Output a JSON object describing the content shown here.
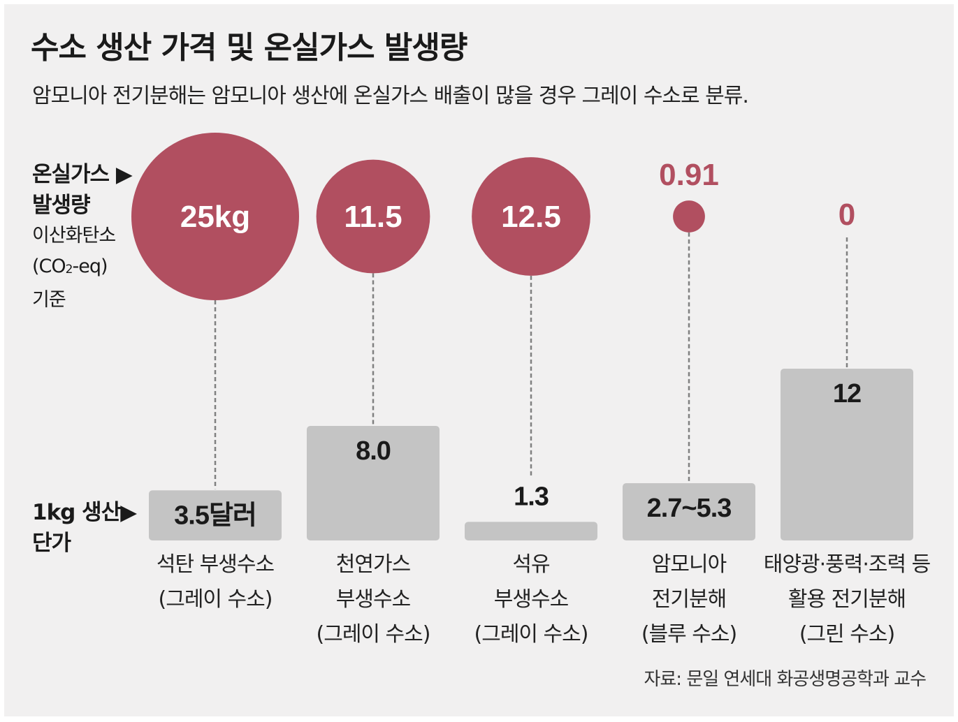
{
  "title": "수소 생산 가격 및 온실가스 발생량",
  "subtitle": "암모니아 전기분해는 암모니아 생산에 온실가스 배출이 많을 경우 그레이 수소로 분류.",
  "source": "자료: 문일 연세대 화공생명공학과 교수",
  "emission_label": {
    "line1": "온실가스 ▶",
    "line2": "발생량",
    "line3": "이산화탄소",
    "line4_open": "(CO",
    "line4_sub": "2",
    "line4_close": "-eq)",
    "line5": "기준"
  },
  "price_label": {
    "line1": "1kg 생산▶",
    "line2": "단가"
  },
  "colors": {
    "bubble": "#b14f60",
    "bar": "#c4c4c4",
    "leader": "#808080",
    "bubble_text": "#ffffff",
    "price_text": "#1a1a1a"
  },
  "chart_data": {
    "type": "bar",
    "categories": [
      [
        "석탄 부생수소",
        "(그레이 수소)"
      ],
      [
        "천연가스",
        "부생수소",
        "(그레이 수소)"
      ],
      [
        "석유",
        "부생수소",
        "(그레이 수소)"
      ],
      [
        "암모니아",
        "전기분해",
        "(블루 수소)"
      ],
      [
        "태양광·풍력·조력 등",
        "활용 전기분해",
        "(그린 수소)"
      ]
    ],
    "series": [
      {
        "name": "1kg 생산 단가",
        "values": [
          3.5,
          8.0,
          1.3,
          4.0,
          12
        ],
        "labels": [
          "3.5달러",
          "8.0",
          "1.3",
          "2.7~5.3",
          "12"
        ],
        "ranges": [
          null,
          null,
          null,
          [
            2.7,
            5.3
          ],
          null
        ]
      },
      {
        "name": "온실가스 발생량",
        "values": [
          25,
          11.5,
          12.5,
          0.91,
          0
        ],
        "labels": [
          "25kg",
          "11.5",
          "12.5",
          "0.91",
          "0"
        ]
      }
    ]
  }
}
